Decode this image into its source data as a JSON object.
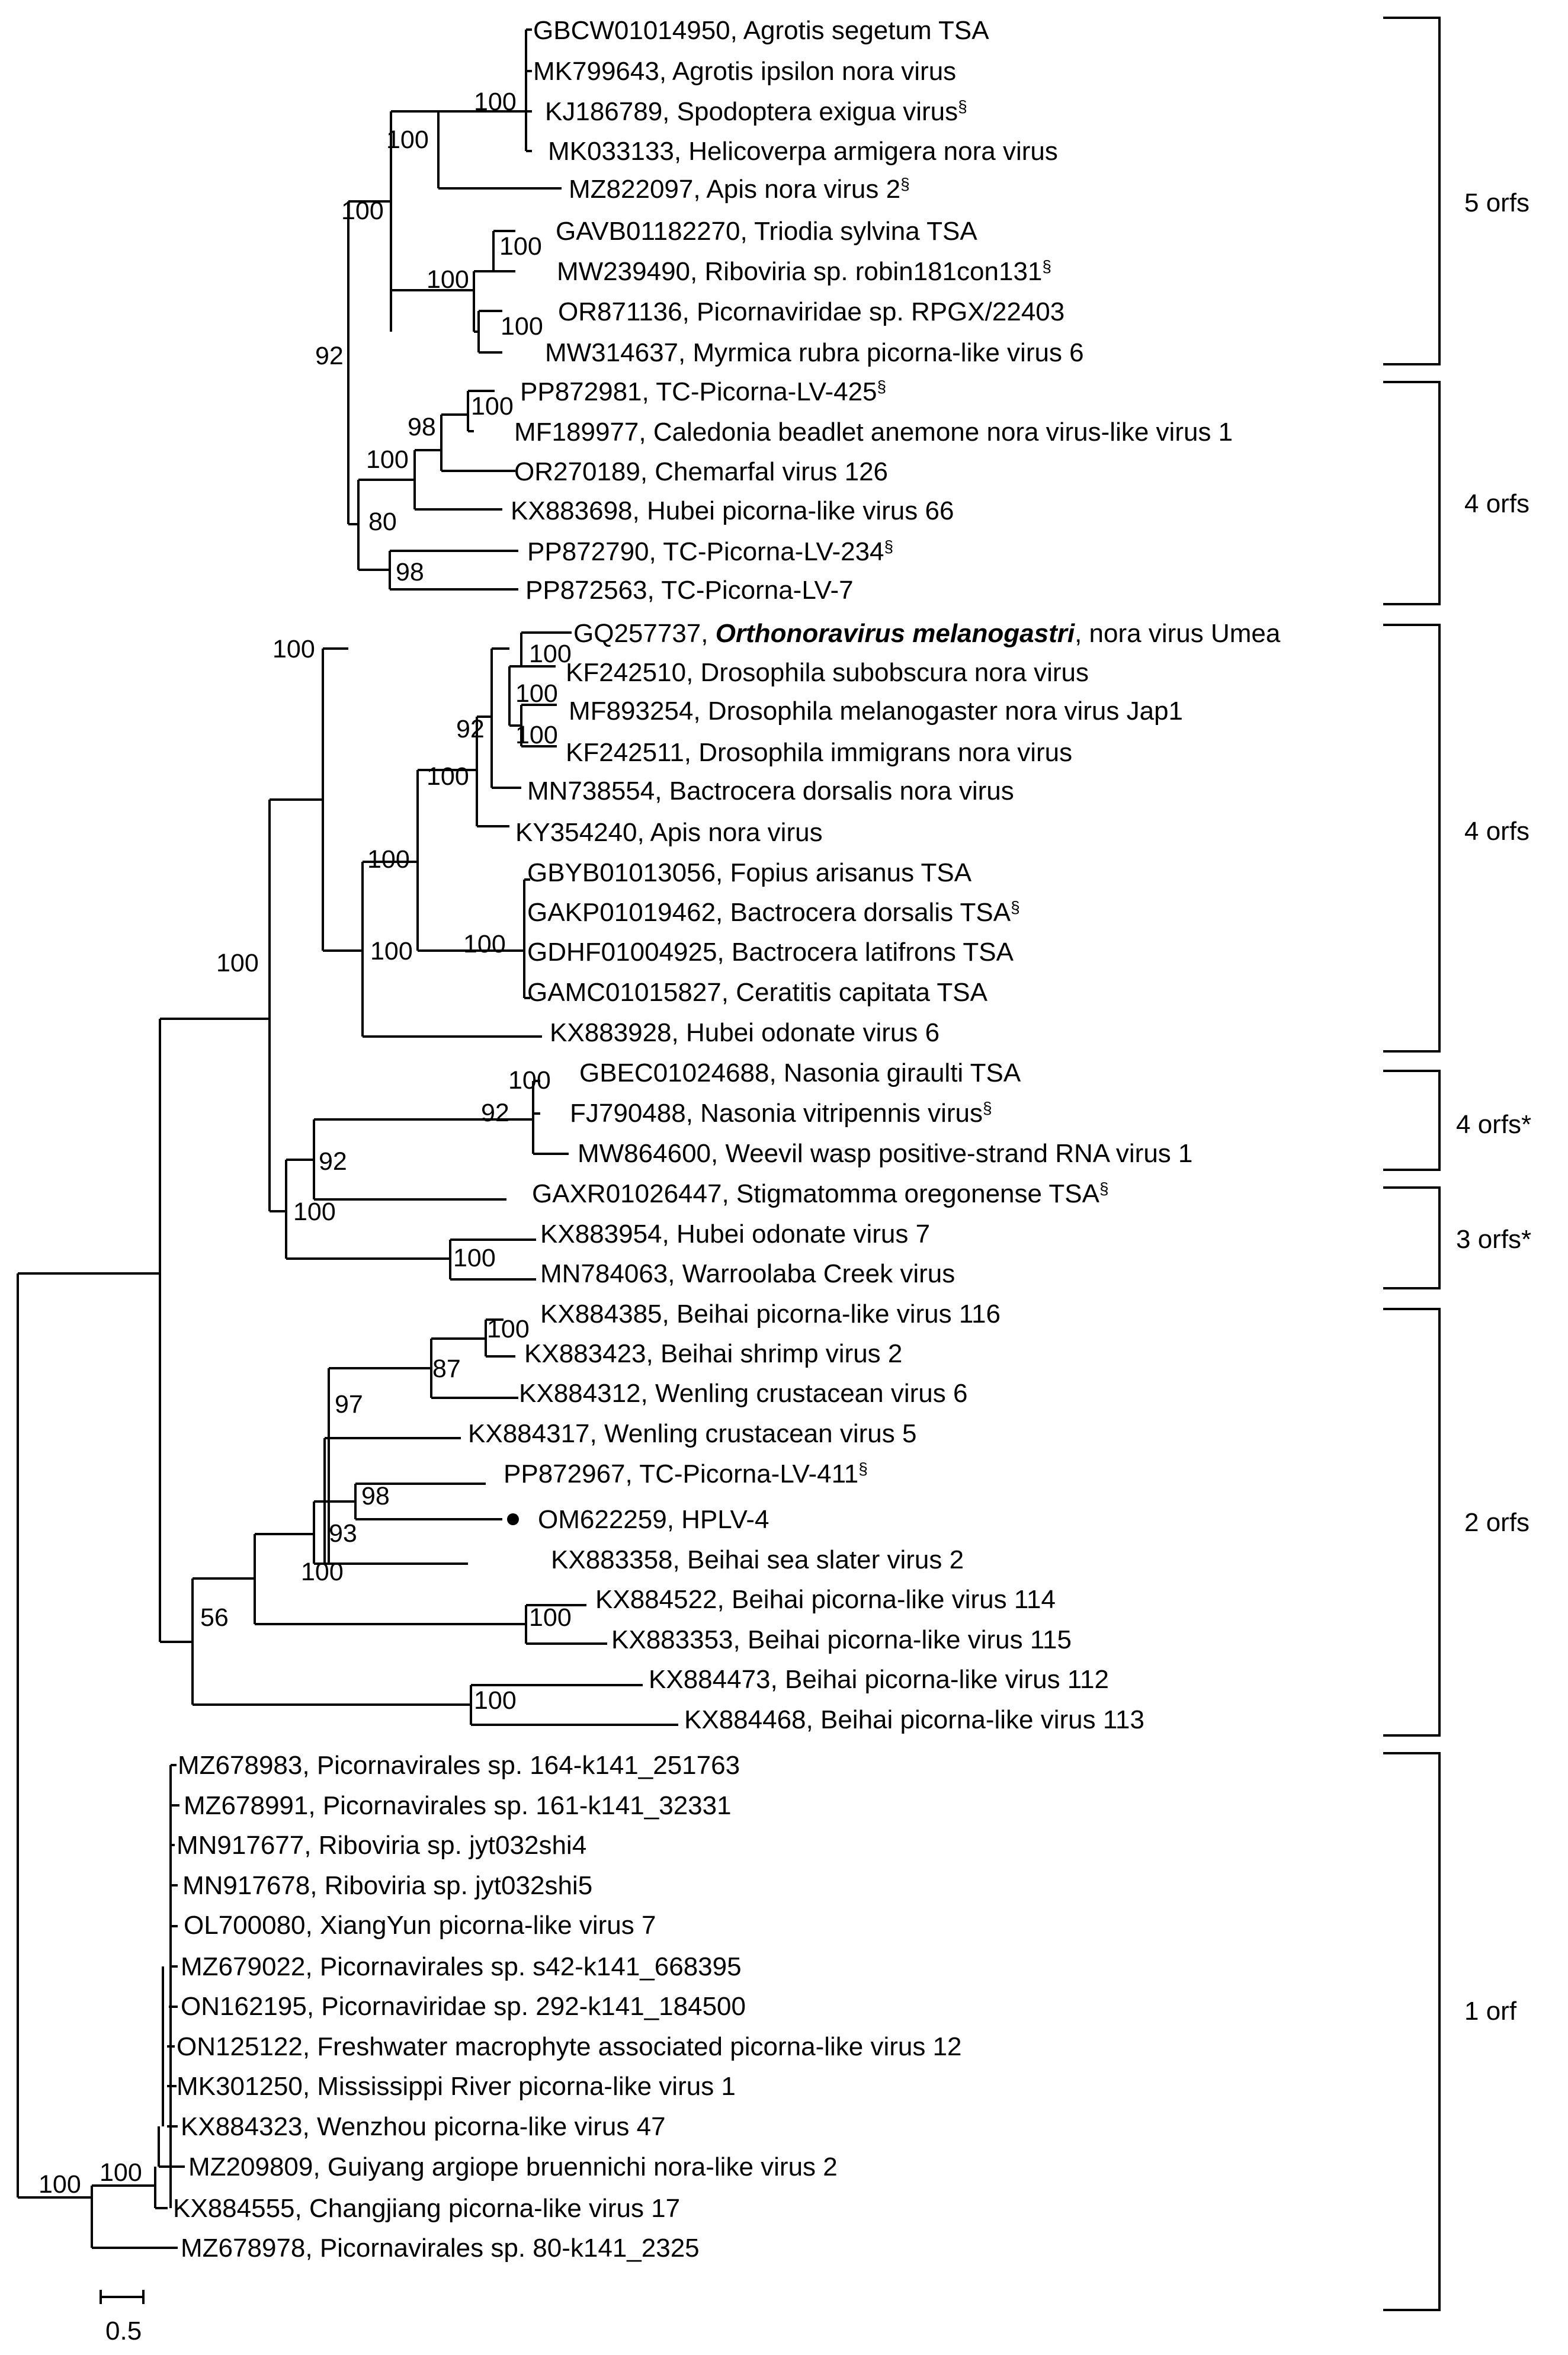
{
  "colors": {
    "default": "#000000",
    "new_sequence": "#ff0000",
    "type_species": "#1f1fcc"
  },
  "leaves": {
    "l1": {
      "acc": "GBCW01014950",
      "name": "Agrotis segetum TSA",
      "sec": ""
    },
    "l2": {
      "acc": "MK799643",
      "name": "Agrotis ipsilon nora virus",
      "sec": ""
    },
    "l3": {
      "acc": "KJ186789",
      "name": "Spodoptera exigua virus",
      "sec": "§"
    },
    "l4": {
      "acc": "MK033133",
      "name": "Helicoverpa armigera nora virus",
      "sec": ""
    },
    "l5": {
      "acc": "MZ822097",
      "name": "Apis nora virus 2",
      "sec": "§"
    },
    "l6": {
      "acc": "GAVB01182270",
      "name": "Triodia sylvina TSA",
      "sec": ""
    },
    "l7": {
      "acc": "MW239490",
      "name": "Riboviria sp. robin181con131",
      "sec": "§"
    },
    "l8": {
      "acc": "OR871136",
      "name": "Picornaviridae sp. RPGX/22403",
      "sec": ""
    },
    "l9": {
      "acc": "MW314637",
      "name": "Myrmica rubra picorna-like virus 6",
      "sec": ""
    },
    "l10": {
      "acc": "PP872981",
      "name": "TC-Picorna-LV-425",
      "sec": "§"
    },
    "l11": {
      "acc": "MF189977",
      "name": "Caledonia beadlet anemone nora virus-like virus 1",
      "sec": ""
    },
    "l12": {
      "acc": "OR270189",
      "name": "Chemarfal virus 126",
      "sec": ""
    },
    "l13": {
      "acc": "KX883698",
      "name": "Hubei picorna-like virus 66",
      "sec": ""
    },
    "l14": {
      "acc": "PP872790",
      "name": "TC-Picorna-LV-234",
      "sec": "§"
    },
    "l15": {
      "acc": "PP872563",
      "name": "TC-Picorna-LV-7",
      "sec": ""
    },
    "l16": {
      "acc": "GQ257737",
      "name": "Orthonoravirus melanogastri",
      "extra": ", nora virus Umea",
      "sec": ""
    },
    "l17": {
      "acc": "KF242510",
      "name": "Drosophila subobscura nora virus",
      "sec": ""
    },
    "l18": {
      "acc": "MF893254",
      "name": "Drosophila melanogaster nora virus Jap1",
      "sec": ""
    },
    "l19": {
      "acc": "KF242511",
      "name": "Drosophila immigrans nora virus",
      "sec": ""
    },
    "l20": {
      "acc": "MN738554",
      "name": "Bactrocera dorsalis nora virus",
      "sec": ""
    },
    "l21": {
      "acc": "KY354240",
      "name": "Apis nora virus",
      "sec": ""
    },
    "l22": {
      "acc": "GBYB01013056",
      "name": "Fopius arisanus TSA",
      "sec": ""
    },
    "l23": {
      "acc": "GAKP01019462",
      "name": "Bactrocera dorsalis TSA",
      "sec": "§"
    },
    "l24": {
      "acc": "GDHF01004925",
      "name": "Bactrocera latifrons TSA",
      "sec": ""
    },
    "l25": {
      "acc": "GAMC01015827",
      "name": "Ceratitis capitata TSA",
      "sec": ""
    },
    "l26": {
      "acc": "KX883928",
      "name": "Hubei odonate virus 6",
      "sec": ""
    },
    "l27": {
      "acc": "GBEC01024688",
      "name": "Nasonia giraulti TSA",
      "sec": ""
    },
    "l28": {
      "acc": "FJ790488",
      "name": "Nasonia vitripennis virus",
      "sec": "§"
    },
    "l29": {
      "acc": "MW864600",
      "name": "Weevil wasp positive-strand RNA virus 1",
      "sec": ""
    },
    "l30": {
      "acc": "GAXR01026447",
      "name": "Stigmatomma oregonense TSA",
      "sec": "§"
    },
    "l31": {
      "acc": "KX883954",
      "name": "Hubei odonate virus 7",
      "sec": ""
    },
    "l32": {
      "acc": "MN784063",
      "name": "Warroolaba Creek virus",
      "sec": ""
    },
    "l33": {
      "acc": "KX884385",
      "name": "Beihai picorna-like virus 116",
      "sec": ""
    },
    "l34": {
      "acc": "KX883423",
      "name": "Beihai shrimp virus 2",
      "sec": ""
    },
    "l35": {
      "acc": "KX884312",
      "name": "Wenling crustacean virus 6",
      "sec": ""
    },
    "l36": {
      "acc": "KX884317",
      "name": "Wenling crustacean virus 5",
      "sec": ""
    },
    "l37": {
      "acc": "PP872967",
      "name": "TC-Picorna-LV-411",
      "sec": "§"
    },
    "l38": {
      "acc": "OM622259",
      "name": "HPLV-4",
      "sec": ""
    },
    "l39": {
      "acc": "KX883358",
      "name": "Beihai sea slater virus 2",
      "sec": ""
    },
    "l40": {
      "acc": "KX884522",
      "name": "Beihai picorna-like virus 114",
      "sec": ""
    },
    "l41": {
      "acc": "KX883353",
      "name": "Beihai picorna-like virus 115",
      "sec": ""
    },
    "l42": {
      "acc": "KX884473",
      "name": "Beihai picorna-like virus 112",
      "sec": ""
    },
    "l43": {
      "acc": "KX884468",
      "name": "Beihai picorna-like virus 113",
      "sec": ""
    },
    "l44": {
      "acc": "MZ678983",
      "name": "Picornavirales sp. 164-k141_251763",
      "sec": ""
    },
    "l45": {
      "acc": "MZ678991",
      "name": "Picornavirales sp. 161-k141_32331",
      "sec": ""
    },
    "l46": {
      "acc": "MN917677",
      "name": "Riboviria sp. jyt032shi4",
      "sec": ""
    },
    "l47": {
      "acc": "MN917678",
      "name": "Riboviria sp. jyt032shi5",
      "sec": ""
    },
    "l48": {
      "acc": "OL700080",
      "name": "XiangYun picorna-like virus 7",
      "sec": ""
    },
    "l49": {
      "acc": "MZ679022",
      "name": "Picornavirales sp. s42-k141_668395",
      "sec": ""
    },
    "l50": {
      "acc": "ON162195",
      "name": "Picornaviridae sp. 292-k141_184500",
      "sec": ""
    },
    "l51": {
      "acc": "ON125122",
      "name": "Freshwater macrophyte associated picorna-like virus 12",
      "sec": ""
    },
    "l52": {
      "acc": "MK301250",
      "name": "Mississippi River picorna-like virus 1",
      "sec": ""
    },
    "l53": {
      "acc": "KX884323",
      "name": "Wenzhou picorna-like virus 47",
      "sec": ""
    },
    "l54": {
      "acc": "MZ209809",
      "name": "Guiyang argiope bruennichi nora-like virus 2",
      "sec": ""
    },
    "l55": {
      "acc": "KX884555",
      "name": "Changjiang picorna-like virus 17",
      "sec": ""
    },
    "l56": {
      "acc": "MZ678978",
      "name": "Picornavirales sp. 80-k141_2325",
      "sec": ""
    }
  },
  "bootstrap": {
    "b1": "100",
    "b2": "100",
    "b3": "100",
    "b4": "100",
    "b5": "100",
    "b6": "100",
    "b7": "92",
    "b8": "100",
    "b9": "98",
    "b10": "100",
    "b11": "80",
    "b12": "98",
    "b13": "100",
    "b14": "100",
    "b15": "100",
    "b16": "100",
    "b17": "92",
    "b18": "100",
    "b19": "100",
    "b20": "100",
    "b21": "100",
    "b22": "100",
    "b23": "100",
    "b24": "92",
    "b25": "92",
    "b26": "100",
    "b27": "100",
    "b28": "100",
    "b29": "87",
    "b30": "97",
    "b31": "98",
    "b32": "93",
    "b33": "100",
    "b34": "100",
    "b35": "56",
    "b36": "100",
    "b37": "100",
    "b38": "100"
  },
  "groups": {
    "g1": "5 orfs",
    "g2": "4 orfs",
    "g3": "4 orfs",
    "g4": "4 orfs*",
    "g5": "3 orfs*",
    "g6": "2 orfs",
    "g7": "1 orf"
  },
  "scale_bar": {
    "label": "0.5"
  }
}
